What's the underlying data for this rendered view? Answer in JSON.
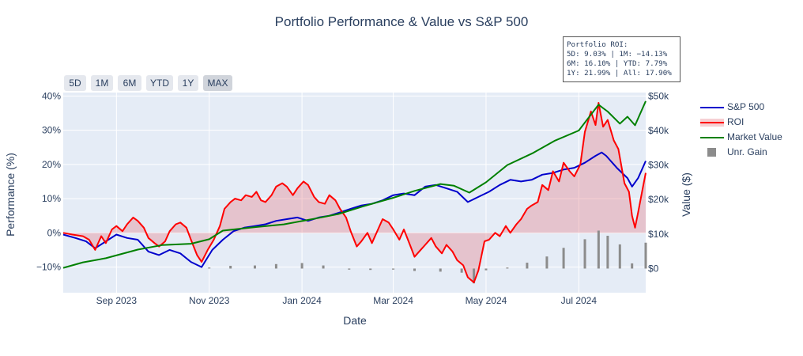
{
  "chart_data": {
    "type": "line",
    "title": "Portfolio Performance & Value vs S&P 500",
    "xlabel": "Date",
    "ylabel": "Performance (%)",
    "y2label": "Value ($)",
    "x_range": [
      "2023-07-28",
      "2024-08-14"
    ],
    "x_ticks": [
      {
        "date": "2023-09-01",
        "label": "Sep 2023"
      },
      {
        "date": "2023-11-01",
        "label": "Nov 2023"
      },
      {
        "date": "2024-01-01",
        "label": "Jan 2024"
      },
      {
        "date": "2024-03-01",
        "label": "Mar 2024"
      },
      {
        "date": "2024-05-01",
        "label": "May 2024"
      },
      {
        "date": "2024-07-01",
        "label": "Jul 2024"
      }
    ],
    "y_range": [
      -17.5,
      41
    ],
    "y_ticks": [
      {
        "v": -10,
        "label": "−10%"
      },
      {
        "v": 0,
        "label": "0%"
      },
      {
        "v": 10,
        "label": "10%"
      },
      {
        "v": 20,
        "label": "20%"
      },
      {
        "v": 30,
        "label": "30%"
      },
      {
        "v": 40,
        "label": "40%"
      }
    ],
    "y2_range": [
      -7000,
      51000
    ],
    "y2_ticks": [
      {
        "v": 0,
        "label": "$0"
      },
      {
        "v": 10000,
        "label": "$10k"
      },
      {
        "v": 20000,
        "label": "$20k"
      },
      {
        "v": 30000,
        "label": "$30k"
      },
      {
        "v": 40000,
        "label": "$40k"
      },
      {
        "v": 50000,
        "label": "$50k"
      }
    ],
    "grid": true,
    "legend_position": "right",
    "series": [
      {
        "name": "S&P 500",
        "type": "line",
        "axis": "y",
        "color": "#0000cc",
        "points": [
          [
            "2023-07-28",
            -0.5
          ],
          [
            "2023-08-05",
            -1.5
          ],
          [
            "2023-08-12",
            -2.5
          ],
          [
            "2023-08-18",
            -4.5
          ],
          [
            "2023-08-25",
            -2.5
          ],
          [
            "2023-09-01",
            -0.5
          ],
          [
            "2023-09-08",
            -1.5
          ],
          [
            "2023-09-15",
            -2.0
          ],
          [
            "2023-09-22",
            -5.5
          ],
          [
            "2023-09-29",
            -6.5
          ],
          [
            "2023-10-06",
            -5.0
          ],
          [
            "2023-10-13",
            -6.0
          ],
          [
            "2023-10-20",
            -8.5
          ],
          [
            "2023-10-27",
            -10.0
          ],
          [
            "2023-11-03",
            -5.0
          ],
          [
            "2023-11-10",
            -2.0
          ],
          [
            "2023-11-17",
            0.5
          ],
          [
            "2023-11-24",
            1.5
          ],
          [
            "2023-12-01",
            2.0
          ],
          [
            "2023-12-08",
            2.5
          ],
          [
            "2023-12-15",
            3.5
          ],
          [
            "2023-12-22",
            4.0
          ],
          [
            "2023-12-29",
            4.5
          ],
          [
            "2024-01-05",
            3.5
          ],
          [
            "2024-01-12",
            4.5
          ],
          [
            "2024-01-19",
            5.0
          ],
          [
            "2024-01-26",
            6.0
          ],
          [
            "2024-02-02",
            7.0
          ],
          [
            "2024-02-09",
            8.0
          ],
          [
            "2024-02-16",
            8.5
          ],
          [
            "2024-02-23",
            9.5
          ],
          [
            "2024-03-01",
            11.0
          ],
          [
            "2024-03-08",
            11.5
          ],
          [
            "2024-03-15",
            11.0
          ],
          [
            "2024-03-22",
            13.5
          ],
          [
            "2024-03-29",
            14.0
          ],
          [
            "2024-04-05",
            13.0
          ],
          [
            "2024-04-12",
            12.0
          ],
          [
            "2024-04-19",
            9.0
          ],
          [
            "2024-04-26",
            10.5
          ],
          [
            "2024-05-03",
            12.0
          ],
          [
            "2024-05-10",
            14.0
          ],
          [
            "2024-05-17",
            15.5
          ],
          [
            "2024-05-24",
            15.0
          ],
          [
            "2024-05-31",
            15.5
          ],
          [
            "2024-06-07",
            17.0
          ],
          [
            "2024-06-14",
            17.5
          ],
          [
            "2024-06-21",
            18.5
          ],
          [
            "2024-06-28",
            19.0
          ],
          [
            "2024-07-05",
            20.5
          ],
          [
            "2024-07-12",
            22.5
          ],
          [
            "2024-07-16",
            23.5
          ],
          [
            "2024-07-19",
            22.5
          ],
          [
            "2024-07-26",
            19.0
          ],
          [
            "2024-08-02",
            16.0
          ],
          [
            "2024-08-05",
            13.5
          ],
          [
            "2024-08-09",
            16.0
          ],
          [
            "2024-08-14",
            21.0
          ]
        ]
      },
      {
        "name": "ROI",
        "type": "area",
        "axis": "y",
        "color": "#ff0000",
        "fill": "rgba(230,120,130,0.35)",
        "points": [
          [
            "2023-07-28",
            0.0
          ],
          [
            "2023-08-03",
            -0.5
          ],
          [
            "2023-08-10",
            -1.0
          ],
          [
            "2023-08-14",
            -2.0
          ],
          [
            "2023-08-18",
            -5.0
          ],
          [
            "2023-08-22",
            -1.0
          ],
          [
            "2023-08-25",
            -3.0
          ],
          [
            "2023-08-29",
            1.0
          ],
          [
            "2023-09-01",
            2.0
          ],
          [
            "2023-09-05",
            0.5
          ],
          [
            "2023-09-08",
            2.5
          ],
          [
            "2023-09-12",
            4.5
          ],
          [
            "2023-09-15",
            3.5
          ],
          [
            "2023-09-19",
            1.5
          ],
          [
            "2023-09-22",
            -1.5
          ],
          [
            "2023-09-26",
            -3.0
          ],
          [
            "2023-09-29",
            -4.0
          ],
          [
            "2023-10-03",
            -2.5
          ],
          [
            "2023-10-06",
            0.5
          ],
          [
            "2023-10-10",
            2.5
          ],
          [
            "2023-10-13",
            3.0
          ],
          [
            "2023-10-17",
            1.5
          ],
          [
            "2023-10-20",
            -2.0
          ],
          [
            "2023-10-24",
            -6.5
          ],
          [
            "2023-10-27",
            -8.5
          ],
          [
            "2023-10-31",
            -5.0
          ],
          [
            "2023-11-04",
            -2.0
          ],
          [
            "2023-11-08",
            2.0
          ],
          [
            "2023-11-11",
            7.0
          ],
          [
            "2023-11-15",
            9.0
          ],
          [
            "2023-11-18",
            10.0
          ],
          [
            "2023-11-22",
            9.5
          ],
          [
            "2023-11-25",
            11.0
          ],
          [
            "2023-11-29",
            10.5
          ],
          [
            "2023-12-02",
            12.0
          ],
          [
            "2023-12-05",
            9.5
          ],
          [
            "2023-12-08",
            9.0
          ],
          [
            "2023-12-12",
            11.0
          ],
          [
            "2023-12-15",
            13.5
          ],
          [
            "2023-12-19",
            14.5
          ],
          [
            "2023-12-22",
            13.5
          ],
          [
            "2023-12-26",
            11.0
          ],
          [
            "2023-12-29",
            13.0
          ],
          [
            "2024-01-02",
            15.0
          ],
          [
            "2024-01-05",
            14.0
          ],
          [
            "2024-01-09",
            10.5
          ],
          [
            "2024-01-12",
            9.0
          ],
          [
            "2024-01-16",
            8.5
          ],
          [
            "2024-01-19",
            11.0
          ],
          [
            "2024-01-23",
            9.5
          ],
          [
            "2024-01-26",
            7.0
          ],
          [
            "2024-01-30",
            4.5
          ],
          [
            "2024-02-02",
            0.5
          ],
          [
            "2024-02-06",
            -4.0
          ],
          [
            "2024-02-09",
            -2.5
          ],
          [
            "2024-02-13",
            0.0
          ],
          [
            "2024-02-16",
            -3.0
          ],
          [
            "2024-02-20",
            1.0
          ],
          [
            "2024-02-23",
            4.0
          ],
          [
            "2024-02-27",
            3.0
          ],
          [
            "2024-03-01",
            1.0
          ],
          [
            "2024-03-05",
            -2.0
          ],
          [
            "2024-03-08",
            1.0
          ],
          [
            "2024-03-12",
            -3.5
          ],
          [
            "2024-03-15",
            -7.0
          ],
          [
            "2024-03-19",
            -5.0
          ],
          [
            "2024-03-22",
            -3.5
          ],
          [
            "2024-03-26",
            -1.5
          ],
          [
            "2024-03-29",
            -4.0
          ],
          [
            "2024-04-02",
            -6.0
          ],
          [
            "2024-04-05",
            -3.5
          ],
          [
            "2024-04-09",
            -5.5
          ],
          [
            "2024-04-12",
            -8.0
          ],
          [
            "2024-04-16",
            -9.5
          ],
          [
            "2024-04-19",
            -13.0
          ],
          [
            "2024-04-23",
            -14.5
          ],
          [
            "2024-04-26",
            -11.0
          ],
          [
            "2024-04-30",
            -2.5
          ],
          [
            "2024-05-03",
            -2.0
          ],
          [
            "2024-05-07",
            0.0
          ],
          [
            "2024-05-10",
            -1.0
          ],
          [
            "2024-05-14",
            2.0
          ],
          [
            "2024-05-17",
            0.0
          ],
          [
            "2024-05-21",
            2.5
          ],
          [
            "2024-05-24",
            4.0
          ],
          [
            "2024-05-28",
            7.0
          ],
          [
            "2024-05-31",
            8.0
          ],
          [
            "2024-06-04",
            9.0
          ],
          [
            "2024-06-07",
            14.0
          ],
          [
            "2024-06-11",
            12.5
          ],
          [
            "2024-06-14",
            18.0
          ],
          [
            "2024-06-18",
            15.0
          ],
          [
            "2024-06-21",
            20.5
          ],
          [
            "2024-06-25",
            18.0
          ],
          [
            "2024-06-28",
            16.5
          ],
          [
            "2024-07-02",
            20.0
          ],
          [
            "2024-07-05",
            29.5
          ],
          [
            "2024-07-09",
            35.5
          ],
          [
            "2024-07-12",
            31.5
          ],
          [
            "2024-07-14",
            38.0
          ],
          [
            "2024-07-17",
            31.0
          ],
          [
            "2024-07-20",
            33.0
          ],
          [
            "2024-07-24",
            27.0
          ],
          [
            "2024-07-27",
            24.5
          ],
          [
            "2024-07-31",
            14.5
          ],
          [
            "2024-08-03",
            12.0
          ],
          [
            "2024-08-05",
            5.0
          ],
          [
            "2024-08-07",
            1.5
          ],
          [
            "2024-08-09",
            6.0
          ],
          [
            "2024-08-12",
            13.0
          ],
          [
            "2024-08-14",
            17.5
          ]
        ]
      },
      {
        "name": "Market Value",
        "type": "line",
        "axis": "y2",
        "color": "#008000",
        "points": [
          [
            "2023-07-28",
            200
          ],
          [
            "2023-08-10",
            1800
          ],
          [
            "2023-08-25",
            3000
          ],
          [
            "2023-09-15",
            5500
          ],
          [
            "2023-10-01",
            6800
          ],
          [
            "2023-10-20",
            7200
          ],
          [
            "2023-11-01",
            8500
          ],
          [
            "2023-11-10",
            11000
          ],
          [
            "2023-12-01",
            12000
          ],
          [
            "2023-12-20",
            12800
          ],
          [
            "2024-01-10",
            14500
          ],
          [
            "2024-01-25",
            15800
          ],
          [
            "2024-02-10",
            18000
          ],
          [
            "2024-03-01",
            20500
          ],
          [
            "2024-03-15",
            22500
          ],
          [
            "2024-04-01",
            24500
          ],
          [
            "2024-04-10",
            24000
          ],
          [
            "2024-04-20",
            22000
          ],
          [
            "2024-05-01",
            25000
          ],
          [
            "2024-05-15",
            30000
          ],
          [
            "2024-06-01",
            33500
          ],
          [
            "2024-06-15",
            37000
          ],
          [
            "2024-07-01",
            40000
          ],
          [
            "2024-07-14",
            47500
          ],
          [
            "2024-07-20",
            45500
          ],
          [
            "2024-07-28",
            42000
          ],
          [
            "2024-08-02",
            44000
          ],
          [
            "2024-08-07",
            41500
          ],
          [
            "2024-08-14",
            48500
          ]
        ]
      },
      {
        "name": "Unr. Gain",
        "type": "bar",
        "axis": "y2",
        "color": "#8c8c8c",
        "points": [
          [
            "2023-11-01",
            300
          ],
          [
            "2023-11-15",
            800
          ],
          [
            "2023-12-01",
            900
          ],
          [
            "2023-12-15",
            1300
          ],
          [
            "2024-01-01",
            1600
          ],
          [
            "2024-01-15",
            900
          ],
          [
            "2024-02-01",
            -300
          ],
          [
            "2024-02-15",
            -400
          ],
          [
            "2024-03-01",
            -300
          ],
          [
            "2024-03-15",
            -700
          ],
          [
            "2024-04-01",
            -900
          ],
          [
            "2024-04-15",
            -1200
          ],
          [
            "2024-04-23",
            -4300
          ],
          [
            "2024-05-01",
            -500
          ],
          [
            "2024-05-15",
            300
          ],
          [
            "2024-05-28",
            1700
          ],
          [
            "2024-06-10",
            3500
          ],
          [
            "2024-06-21",
            6000
          ],
          [
            "2024-07-05",
            8500
          ],
          [
            "2024-07-14",
            11000
          ],
          [
            "2024-07-20",
            9500
          ],
          [
            "2024-07-28",
            7000
          ],
          [
            "2024-08-05",
            1500
          ],
          [
            "2024-08-14",
            7500
          ]
        ]
      }
    ],
    "annotation": {
      "lines": [
        "Portfolio ROI:",
        "5D: 9.03% | 1M: −14.13%",
        "6M: 16.10% | YTD: 7.79%",
        "1Y: 21.99% | All: 17.90%"
      ]
    }
  },
  "range_buttons": [
    {
      "label": "5D",
      "active": false
    },
    {
      "label": "1M",
      "active": false
    },
    {
      "label": "6M",
      "active": false
    },
    {
      "label": "YTD",
      "active": false
    },
    {
      "label": "1Y",
      "active": false
    },
    {
      "label": "MAX",
      "active": true
    }
  ]
}
